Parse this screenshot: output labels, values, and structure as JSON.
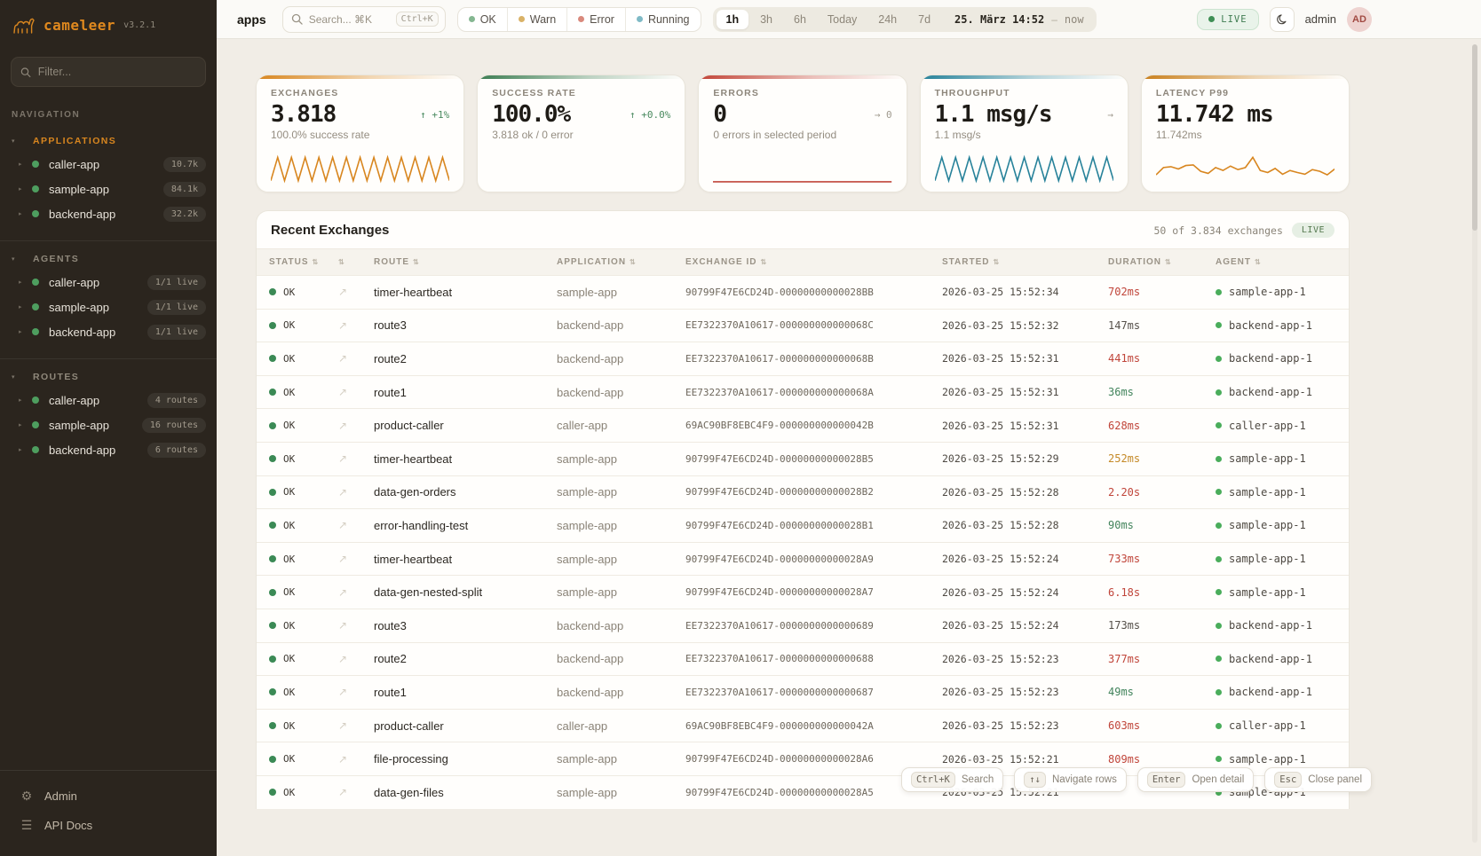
{
  "sidebar": {
    "logo": {
      "name": "cameleer",
      "version": "v3.2.1"
    },
    "filter_placeholder": "Filter...",
    "nav_label": "NAVIGATION",
    "sections": [
      {
        "label": "APPLICATIONS",
        "accent": true,
        "items": [
          {
            "name": "caller-app",
            "badge": "10.7k"
          },
          {
            "name": "sample-app",
            "badge": "84.1k"
          },
          {
            "name": "backend-app",
            "badge": "32.2k"
          }
        ]
      },
      {
        "label": "AGENTS",
        "accent": false,
        "items": [
          {
            "name": "caller-app",
            "badge": "1/1 live"
          },
          {
            "name": "sample-app",
            "badge": "1/1 live"
          },
          {
            "name": "backend-app",
            "badge": "1/1 live"
          }
        ]
      },
      {
        "label": "ROUTES",
        "accent": false,
        "items": [
          {
            "name": "caller-app",
            "badge": "4 routes"
          },
          {
            "name": "sample-app",
            "badge": "16 routes"
          },
          {
            "name": "backend-app",
            "badge": "6 routes"
          }
        ]
      }
    ],
    "footer": [
      {
        "label": "Admin",
        "icon": "gear-icon",
        "glyph": "⚙"
      },
      {
        "label": "API Docs",
        "icon": "menu-icon",
        "glyph": "☰"
      }
    ]
  },
  "topbar": {
    "context": "apps",
    "search": {
      "placeholder": "Search... ⌘K",
      "kbd": "Ctrl+K"
    },
    "status_filters": [
      {
        "label": "OK",
        "color": "#84b791"
      },
      {
        "label": "Warn",
        "color": "#d9b267"
      },
      {
        "label": "Error",
        "color": "#d9897d"
      },
      {
        "label": "Running",
        "color": "#7fbac6"
      }
    ],
    "ranges": [
      "1h",
      "3h",
      "6h",
      "Today",
      "24h",
      "7d"
    ],
    "active_range": "1h",
    "date_label": "25. März 14:52",
    "date_sep": "–",
    "date_end": "now",
    "live_label": "LIVE",
    "user": "admin",
    "avatar": "AD"
  },
  "cards": [
    {
      "label": "EXCHANGES",
      "value": "3.818",
      "delta": "↑ +1%",
      "delta_color": "green",
      "sub": "100.0% success rate",
      "accent": "#d8861f",
      "spark": {
        "color": "#d8861f",
        "values": [
          10,
          90,
          10,
          90,
          10,
          90,
          10,
          90,
          10,
          90,
          10,
          90,
          10,
          90,
          10,
          90,
          10,
          90,
          10,
          90,
          10,
          90,
          10,
          90,
          10,
          90,
          10
        ]
      }
    },
    {
      "label": "SUCCESS RATE",
      "value": "100.0%",
      "delta": "↑ +0.0%",
      "delta_color": "green",
      "sub": "3.818 ok / 0 error",
      "accent": "#3c7d52",
      "spark": null
    },
    {
      "label": "ERRORS",
      "value": "0",
      "delta": "→ 0",
      "delta_color": "gray",
      "sub": "0 errors in selected period",
      "accent": "#c24538",
      "spark": {
        "color": "#c0453a",
        "values": [
          6,
          6
        ]
      }
    },
    {
      "label": "THROUGHPUT",
      "value": "1.1 msg/s",
      "delta": "→",
      "delta_color": "gray",
      "sub": "1.1 msg/s",
      "accent": "#27829a",
      "spark": {
        "color": "#27829a",
        "values": [
          10,
          90,
          10,
          90,
          10,
          90,
          10,
          90,
          10,
          90,
          10,
          90,
          10,
          90,
          10,
          90,
          10,
          90,
          10,
          90,
          10,
          90,
          10,
          90,
          10,
          90,
          10
        ]
      }
    },
    {
      "label": "LATENCY P99",
      "value": "11.742 ms",
      "delta": "",
      "delta_color": "gray",
      "sub": "11.742ms",
      "accent": "#c9801d",
      "spark": {
        "color": "#d8861f",
        "values": [
          30,
          55,
          58,
          50,
          62,
          64,
          42,
          35,
          55,
          45,
          60,
          48,
          55,
          90,
          45,
          38,
          52,
          32,
          45,
          38,
          32,
          48,
          42,
          30,
          50
        ]
      }
    }
  ],
  "table": {
    "title": "Recent Exchanges",
    "count_label": "50 of 3.834 exchanges",
    "live_label": "LIVE",
    "columns": [
      "STATUS",
      "",
      "ROUTE",
      "APPLICATION",
      "EXCHANGE ID",
      "STARTED",
      "DURATION",
      "AGENT"
    ],
    "rows": [
      {
        "status": "OK",
        "route": "timer-heartbeat",
        "application": "sample-app",
        "exchange_id": "90799F47E6CD24D-00000000000028BB",
        "started": "2026-03-25 15:52:34",
        "duration": "702ms",
        "duration_level": "red",
        "agent": "sample-app-1"
      },
      {
        "status": "OK",
        "route": "route3",
        "application": "backend-app",
        "exchange_id": "EE7322370A10617-000000000000068C",
        "started": "2026-03-25 15:52:32",
        "duration": "147ms",
        "duration_level": "neutral",
        "agent": "backend-app-1"
      },
      {
        "status": "OK",
        "route": "route2",
        "application": "backend-app",
        "exchange_id": "EE7322370A10617-000000000000068B",
        "started": "2026-03-25 15:52:31",
        "duration": "441ms",
        "duration_level": "red",
        "agent": "backend-app-1"
      },
      {
        "status": "OK",
        "route": "route1",
        "application": "backend-app",
        "exchange_id": "EE7322370A10617-000000000000068A",
        "started": "2026-03-25 15:52:31",
        "duration": "36ms",
        "duration_level": "green",
        "agent": "backend-app-1"
      },
      {
        "status": "OK",
        "route": "product-caller",
        "application": "caller-app",
        "exchange_id": "69AC90BF8EBC4F9-000000000000042B",
        "started": "2026-03-25 15:52:31",
        "duration": "628ms",
        "duration_level": "red",
        "agent": "caller-app-1"
      },
      {
        "status": "OK",
        "route": "timer-heartbeat",
        "application": "sample-app",
        "exchange_id": "90799F47E6CD24D-00000000000028B5",
        "started": "2026-03-25 15:52:29",
        "duration": "252ms",
        "duration_level": "amber",
        "agent": "sample-app-1"
      },
      {
        "status": "OK",
        "route": "data-gen-orders",
        "application": "sample-app",
        "exchange_id": "90799F47E6CD24D-00000000000028B2",
        "started": "2026-03-25 15:52:28",
        "duration": "2.20s",
        "duration_level": "red",
        "agent": "sample-app-1"
      },
      {
        "status": "OK",
        "route": "error-handling-test",
        "application": "sample-app",
        "exchange_id": "90799F47E6CD24D-00000000000028B1",
        "started": "2026-03-25 15:52:28",
        "duration": "90ms",
        "duration_level": "green",
        "agent": "sample-app-1"
      },
      {
        "status": "OK",
        "route": "timer-heartbeat",
        "application": "sample-app",
        "exchange_id": "90799F47E6CD24D-00000000000028A9",
        "started": "2026-03-25 15:52:24",
        "duration": "733ms",
        "duration_level": "red",
        "agent": "sample-app-1"
      },
      {
        "status": "OK",
        "route": "data-gen-nested-split",
        "application": "sample-app",
        "exchange_id": "90799F47E6CD24D-00000000000028A7",
        "started": "2026-03-25 15:52:24",
        "duration": "6.18s",
        "duration_level": "red",
        "agent": "sample-app-1"
      },
      {
        "status": "OK",
        "route": "route3",
        "application": "backend-app",
        "exchange_id": "EE7322370A10617-0000000000000689",
        "started": "2026-03-25 15:52:24",
        "duration": "173ms",
        "duration_level": "neutral",
        "agent": "backend-app-1"
      },
      {
        "status": "OK",
        "route": "route2",
        "application": "backend-app",
        "exchange_id": "EE7322370A10617-0000000000000688",
        "started": "2026-03-25 15:52:23",
        "duration": "377ms",
        "duration_level": "red",
        "agent": "backend-app-1"
      },
      {
        "status": "OK",
        "route": "route1",
        "application": "backend-app",
        "exchange_id": "EE7322370A10617-0000000000000687",
        "started": "2026-03-25 15:52:23",
        "duration": "49ms",
        "duration_level": "green",
        "agent": "backend-app-1"
      },
      {
        "status": "OK",
        "route": "product-caller",
        "application": "caller-app",
        "exchange_id": "69AC90BF8EBC4F9-000000000000042A",
        "started": "2026-03-25 15:52:23",
        "duration": "603ms",
        "duration_level": "red",
        "agent": "caller-app-1"
      },
      {
        "status": "OK",
        "route": "file-processing",
        "application": "sample-app",
        "exchange_id": "90799F47E6CD24D-00000000000028A6",
        "started": "2026-03-25 15:52:21",
        "duration": "809ms",
        "duration_level": "red",
        "agent": "sample-app-1"
      },
      {
        "status": "OK",
        "route": "data-gen-files",
        "application": "sample-app",
        "exchange_id": "90799F47E6CD24D-00000000000028A5",
        "started": "2026-03-25 15:52:21",
        "duration": "",
        "duration_level": "neutral",
        "agent": "sample-app-1"
      }
    ]
  },
  "hints": [
    {
      "kbd": "Ctrl+K",
      "label": "Search"
    },
    {
      "kbd": "↑↓",
      "label": "Navigate rows"
    },
    {
      "kbd": "Enter",
      "label": "Open detail"
    },
    {
      "kbd": "Esc",
      "label": "Close panel"
    }
  ]
}
